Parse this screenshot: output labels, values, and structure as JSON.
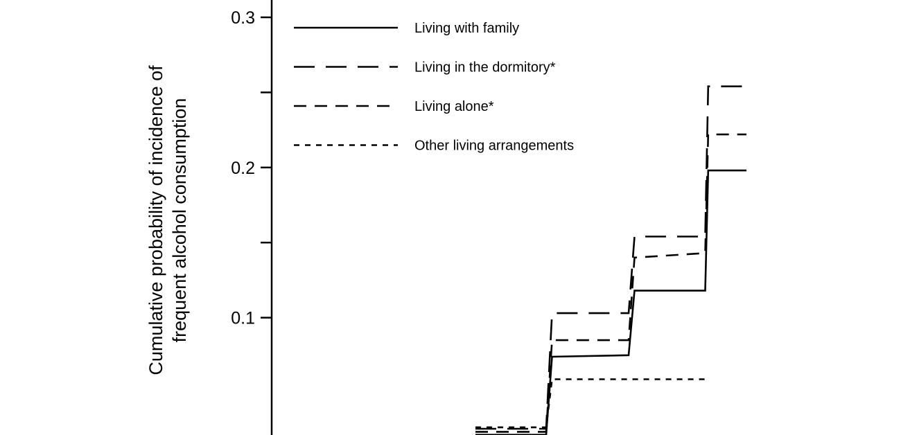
{
  "chart_data": {
    "type": "line",
    "step": true,
    "ylabel_line1": "Cumulative probability of incidence of",
    "ylabel_line2": "frequent alcohol consumption",
    "ylim": [
      0.03,
      0.31
    ],
    "xlim": [
      0,
      12
    ],
    "y_ticks": [
      0.1,
      0.15,
      0.2,
      0.25,
      0.3
    ],
    "y_tick_labels": [
      "0.1",
      "0.2",
      "0.3"
    ],
    "legend_position": "top-left",
    "series": [
      {
        "name": "Living with family",
        "dash": "solid",
        "x": [
          6.6,
          7.8,
          7.9,
          9.2,
          9.3,
          10.5,
          10.55,
          11.2
        ],
        "y": [
          0.022,
          0.022,
          0.074,
          0.075,
          0.118,
          0.118,
          0.198,
          0.198
        ]
      },
      {
        "name": "Living in the dormitory*",
        "dash": "long-dash",
        "x": [
          6.6,
          7.8,
          7.9,
          9.2,
          9.3,
          10.5,
          10.55,
          11.2
        ],
        "y": [
          0.026,
          0.026,
          0.103,
          0.103,
          0.154,
          0.154,
          0.254,
          0.254
        ]
      },
      {
        "name": "Living alone*",
        "dash": "dash",
        "x": [
          6.6,
          7.8,
          7.9,
          9.2,
          9.3,
          10.5,
          10.55,
          11.2
        ],
        "y": [
          0.024,
          0.024,
          0.085,
          0.085,
          0.14,
          0.143,
          0.222,
          0.222
        ]
      },
      {
        "name": "Other living arrangements",
        "dash": "dot",
        "x": [
          6.6,
          7.8,
          7.9,
          10.55
        ],
        "y": [
          0.027,
          0.027,
          0.059,
          0.059
        ]
      }
    ]
  }
}
